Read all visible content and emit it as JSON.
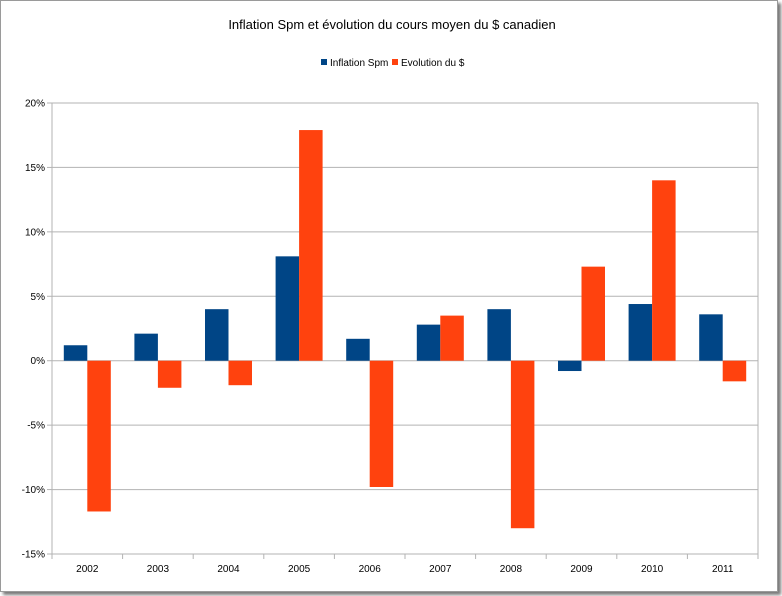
{
  "chart_data": {
    "type": "bar",
    "title": "Inflation Spm et évolution du cours moyen du $ canadien",
    "xlabel": "",
    "ylabel": "",
    "categories": [
      "2002",
      "2003",
      "2004",
      "2005",
      "2006",
      "2007",
      "2008",
      "2009",
      "2010",
      "2011"
    ],
    "series": [
      {
        "name": "Inflation Spm",
        "color": "#004586",
        "values": [
          1.2,
          2.1,
          4.0,
          8.1,
          1.7,
          2.8,
          4.0,
          -0.8,
          4.4,
          3.6
        ]
      },
      {
        "name": "Evolution du $",
        "color": "#ff420e",
        "values": [
          -11.7,
          -2.1,
          -1.9,
          17.9,
          -9.8,
          3.5,
          -13.0,
          7.3,
          14.0,
          -1.6
        ]
      }
    ],
    "ylim": [
      -15,
      20
    ],
    "yticks": [
      20,
      15,
      10,
      5,
      0,
      -5,
      -10,
      -15
    ],
    "ytick_labels": [
      "20%",
      "15%",
      "10%",
      "5%",
      "0%",
      "-5%",
      "-10%",
      "-15%"
    ],
    "grid": true,
    "legend_position": "top"
  }
}
